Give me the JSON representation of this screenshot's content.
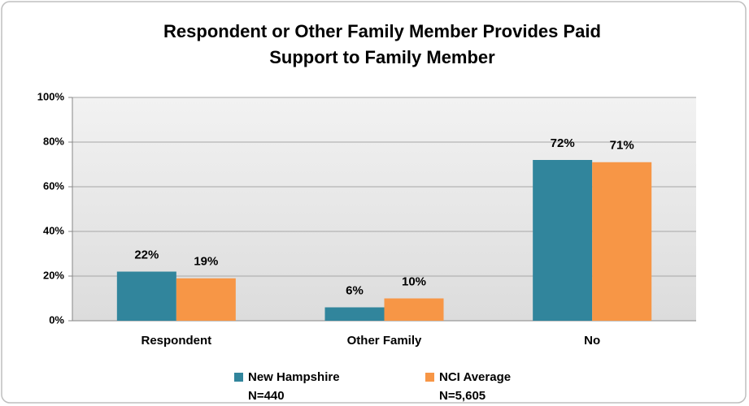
{
  "chart_data": {
    "type": "bar",
    "title": [
      "Respondent or Other Family Member Provides Paid",
      "Support to Family Member"
    ],
    "categories": [
      "Respondent",
      "Other Family",
      "No"
    ],
    "series": [
      {
        "name": "New Hampshire",
        "sample": "N=440",
        "color": "#31859c",
        "values": [
          22,
          6,
          72
        ],
        "value_labels": [
          "22%",
          "6%",
          "72%"
        ]
      },
      {
        "name": "NCI Average",
        "sample": "N=5,605",
        "color": "#f79646",
        "values": [
          19,
          10,
          71
        ],
        "value_labels": [
          "19%",
          "10%",
          "71%"
        ]
      }
    ],
    "ylim": [
      0,
      100
    ],
    "yticks": [
      {
        "value": 0,
        "label": "0%"
      },
      {
        "value": 20,
        "label": "20%"
      },
      {
        "value": 40,
        "label": "40%"
      },
      {
        "value": 60,
        "label": "60%"
      },
      {
        "value": 80,
        "label": "80%"
      },
      {
        "value": 100,
        "label": "100%"
      }
    ],
    "grid": true,
    "legend": "bottom"
  }
}
